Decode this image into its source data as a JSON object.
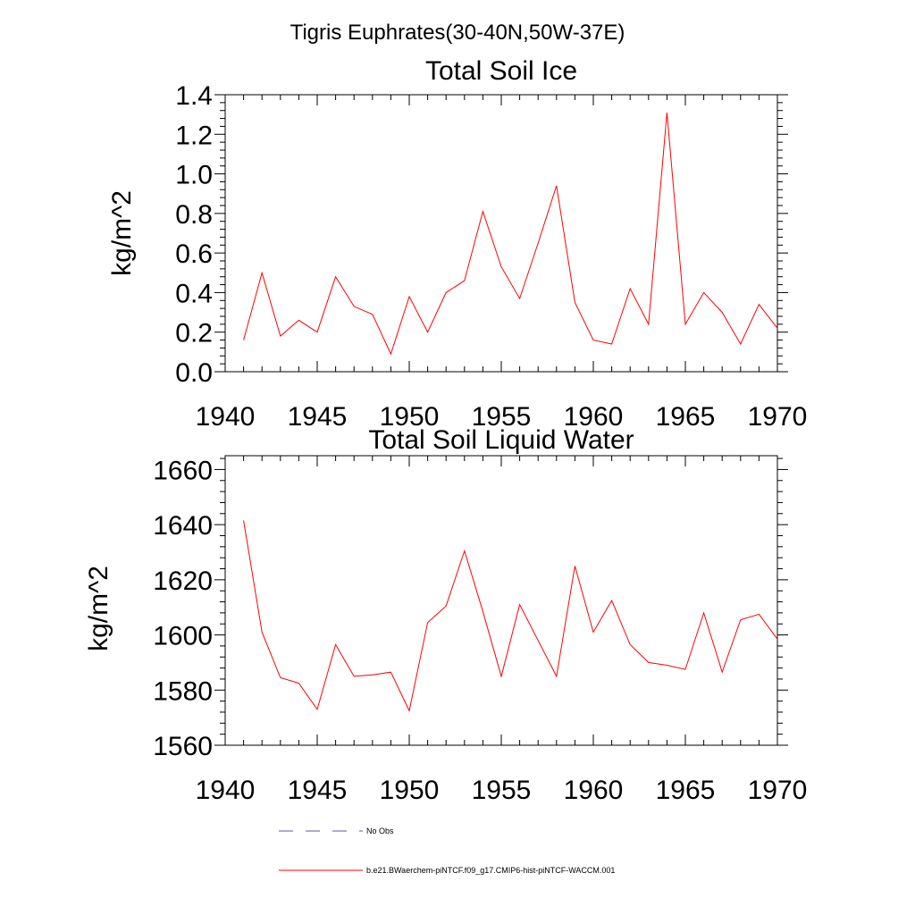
{
  "figure": {
    "title": "Tigris Euphrates(30-40N,50W-37E)"
  },
  "chart_data": [
    {
      "type": "line",
      "title": "Total Soil Ice",
      "xlabel": "",
      "ylabel": "kg/m^2",
      "xlim": [
        1940,
        1970
      ],
      "ylim": [
        0,
        1.4
      ],
      "xticks": [
        "1940",
        "1945",
        "1950",
        "1955",
        "1960",
        "1965",
        "1970"
      ],
      "yticks": [
        "0.0",
        "0.2",
        "0.4",
        "0.6",
        "0.8",
        "1.0",
        "1.2",
        "1.4"
      ],
      "grid": false,
      "x": [
        1941,
        1942,
        1943,
        1944,
        1945,
        1946,
        1947,
        1948,
        1949,
        1950,
        1951,
        1952,
        1953,
        1954,
        1955,
        1956,
        1957,
        1958,
        1959,
        1960,
        1961,
        1962,
        1963,
        1964,
        1965,
        1966,
        1967,
        1968,
        1969,
        1970
      ],
      "series": [
        {
          "color": "#ff0000",
          "values": [
            0.16,
            0.5,
            0.18,
            0.26,
            0.2,
            0.48,
            0.33,
            0.29,
            0.09,
            0.38,
            0.2,
            0.4,
            0.46,
            0.81,
            0.53,
            0.37,
            0.65,
            0.94,
            0.35,
            0.16,
            0.14,
            0.42,
            0.24,
            1.31,
            0.24,
            0.4,
            0.3,
            0.14,
            0.34,
            0.22
          ]
        }
      ]
    },
    {
      "type": "line",
      "title": "Total Soil Liquid Water",
      "xlabel": "",
      "ylabel": "kg/m^2",
      "xlim": [
        1940,
        1970
      ],
      "ylim": [
        1560,
        1665
      ],
      "xticks": [
        "1940",
        "1945",
        "1950",
        "1955",
        "1960",
        "1965",
        "1970"
      ],
      "yticks": [
        "1560",
        "1580",
        "1600",
        "1620",
        "1640",
        "1660"
      ],
      "grid": false,
      "x": [
        1941,
        1942,
        1943,
        1944,
        1945,
        1946,
        1947,
        1948,
        1949,
        1950,
        1951,
        1952,
        1953,
        1954,
        1955,
        1956,
        1957,
        1958,
        1959,
        1960,
        1961,
        1962,
        1963,
        1964,
        1965,
        1966,
        1967,
        1968,
        1969,
        1970
      ],
      "series": [
        {
          "color": "#ff0000",
          "values": [
            1641.5,
            1601,
            1584.5,
            1582.5,
            1573,
            1596.5,
            1585,
            1585.5,
            1586.5,
            1572.5,
            1604.5,
            1610.5,
            1630.5,
            1608.5,
            1585,
            1611,
            1598,
            1585,
            1625,
            1601,
            1612.5,
            1596.5,
            1590,
            1589,
            1587.5,
            1608,
            1586.5,
            1605.5,
            1607.5,
            1598.5
          ]
        }
      ]
    }
  ],
  "legend": {
    "items": [
      {
        "label": "No Obs",
        "color": "#5a5aa0",
        "style": "dashed"
      },
      {
        "label": "b.e21.BWaerchem-piNTCF.f09_g17.CMIP6-hist-piNTCF-WACCM.001",
        "color": "#ff0000",
        "style": "solid"
      }
    ]
  }
}
